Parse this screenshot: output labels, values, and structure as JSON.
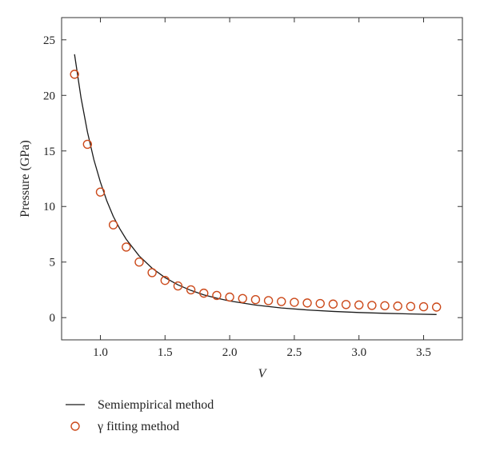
{
  "chart_data": {
    "type": "line",
    "xlabel": "V",
    "ylabel": "Pressure (GPa)",
    "xlim": [
      0.7,
      3.8
    ],
    "ylim": [
      -2,
      27
    ],
    "xticks": [
      1.0,
      1.5,
      2.0,
      2.5,
      3.0,
      3.5
    ],
    "xtick_labels": [
      "1.0",
      "1.5",
      "2.0",
      "2.5",
      "3.0",
      "3.5"
    ],
    "yticks": [
      0,
      5,
      10,
      15,
      20,
      25
    ],
    "ytick_labels": [
      "0",
      "5",
      "10",
      "15",
      "20",
      "25"
    ],
    "grid": false,
    "legend_position": "below",
    "series": [
      {
        "name": "Semiempirical method",
        "style": "line",
        "color": "#1a1a1a",
        "x": [
          0.8,
          0.85,
          0.9,
          0.95,
          1.0,
          1.05,
          1.1,
          1.15,
          1.2,
          1.3,
          1.4,
          1.5,
          1.6,
          1.7,
          1.8,
          1.9,
          2.0,
          2.2,
          2.4,
          2.6,
          2.8,
          3.0,
          3.2,
          3.4,
          3.6
        ],
        "y": [
          23.7,
          19.8,
          16.7,
          14.2,
          12.2,
          10.5,
          9.1,
          8.0,
          7.05,
          5.55,
          4.45,
          3.6,
          2.95,
          2.45,
          2.05,
          1.75,
          1.5,
          1.13,
          0.87,
          0.69,
          0.56,
          0.46,
          0.39,
          0.33,
          0.28
        ]
      },
      {
        "name": "γ fitting method",
        "style": "marker",
        "marker": "open-circle",
        "color": "#cc4a1b",
        "x": [
          0.8,
          0.9,
          1.0,
          1.1,
          1.2,
          1.3,
          1.4,
          1.5,
          1.6,
          1.7,
          1.8,
          1.9,
          2.0,
          2.1,
          2.2,
          2.3,
          2.4,
          2.5,
          2.6,
          2.7,
          2.8,
          2.9,
          3.0,
          3.1,
          3.2,
          3.3,
          3.4,
          3.5,
          3.6
        ],
        "y": [
          21.9,
          15.6,
          11.3,
          8.35,
          6.35,
          5.0,
          4.05,
          3.35,
          2.85,
          2.5,
          2.2,
          2.0,
          1.85,
          1.72,
          1.62,
          1.53,
          1.45,
          1.38,
          1.32,
          1.27,
          1.22,
          1.18,
          1.14,
          1.1,
          1.07,
          1.04,
          1.01,
          0.98,
          0.95
        ]
      }
    ]
  }
}
